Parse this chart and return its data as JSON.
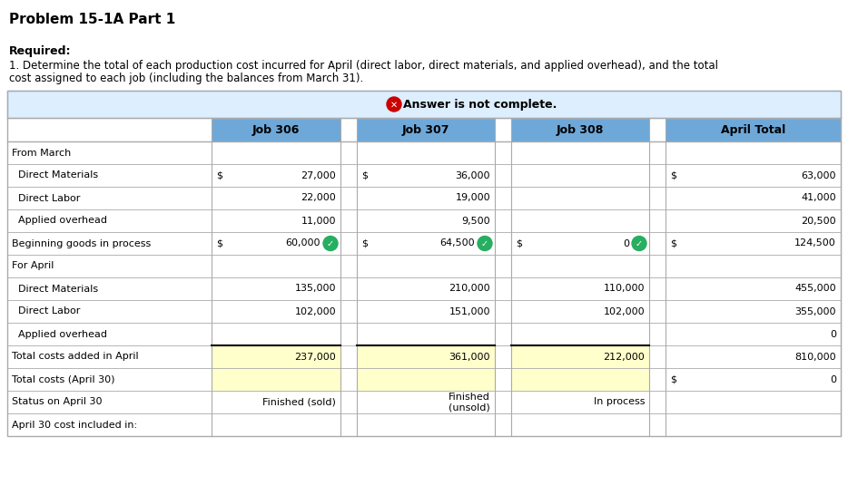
{
  "title": "Problem 15-1A Part 1",
  "required_text": "Required:",
  "desc_line1": "1. Determine the total of each production cost incurred for April (direct labor, direct materials, and applied overhead), and the total",
  "desc_line2": "cost assigned to each job (including the balances from March 31).",
  "answer_banner": "Answer is not complete.",
  "header_bg": "#6ea8d8",
  "answer_bg": "#ddeeff",
  "yellow_bg": "#ffffcc",
  "bg_color": "#ffffff",
  "text_color": "#000000",
  "border_color": "#aaaaaa",
  "sep_color": "#cccccc",
  "rows": [
    {
      "label": "From March",
      "j306d": "",
      "j306v": "",
      "j307d": "",
      "j307v": "",
      "j308d": "",
      "j308v": "",
      "atd": "",
      "atv": "",
      "yellow": false,
      "c6": false,
      "c7": false,
      "c8": false
    },
    {
      "label": "  Direct Materials",
      "j306d": "$",
      "j306v": "27,000",
      "j307d": "$",
      "j307v": "36,000",
      "j308d": "",
      "j308v": "",
      "atd": "$",
      "atv": "63,000",
      "yellow": false,
      "c6": false,
      "c7": false,
      "c8": false
    },
    {
      "label": "  Direct Labor",
      "j306d": "",
      "j306v": "22,000",
      "j307d": "",
      "j307v": "19,000",
      "j308d": "",
      "j308v": "",
      "atd": "",
      "atv": "41,000",
      "yellow": false,
      "c6": false,
      "c7": false,
      "c8": false
    },
    {
      "label": "  Applied overhead",
      "j306d": "",
      "j306v": "11,000",
      "j307d": "",
      "j307v": "9,500",
      "j308d": "",
      "j308v": "",
      "atd": "",
      "atv": "20,500",
      "yellow": false,
      "c6": false,
      "c7": false,
      "c8": false
    },
    {
      "label": "Beginning goods in process",
      "j306d": "$",
      "j306v": "60,000",
      "j307d": "$",
      "j307v": "64,500",
      "j308d": "$",
      "j308v": "0",
      "atd": "$",
      "atv": "124,500",
      "yellow": false,
      "c6": true,
      "c7": true,
      "c8": true
    },
    {
      "label": "For April",
      "j306d": "",
      "j306v": "",
      "j307d": "",
      "j307v": "",
      "j308d": "",
      "j308v": "",
      "atd": "",
      "atv": "",
      "yellow": false,
      "c6": false,
      "c7": false,
      "c8": false
    },
    {
      "label": "  Direct Materials",
      "j306d": "",
      "j306v": "135,000",
      "j307d": "",
      "j307v": "210,000",
      "j308d": "",
      "j308v": "110,000",
      "atd": "",
      "atv": "455,000",
      "yellow": false,
      "c6": false,
      "c7": false,
      "c8": false
    },
    {
      "label": "  Direct Labor",
      "j306d": "",
      "j306v": "102,000",
      "j307d": "",
      "j307v": "151,000",
      "j308d": "",
      "j308v": "102,000",
      "atd": "",
      "atv": "355,000",
      "yellow": false,
      "c6": false,
      "c7": false,
      "c8": false
    },
    {
      "label": "  Applied overhead",
      "j306d": "",
      "j306v": "",
      "j307d": "",
      "j307v": "",
      "j308d": "",
      "j308v": "",
      "atd": "",
      "atv": "0",
      "yellow": false,
      "c6": false,
      "c7": false,
      "c8": false
    },
    {
      "label": "Total costs added in April",
      "j306d": "",
      "j306v": "237,000",
      "j307d": "",
      "j307v": "361,000",
      "j308d": "",
      "j308v": "212,000",
      "atd": "",
      "atv": "810,000",
      "yellow": true,
      "c6": false,
      "c7": false,
      "c8": false
    },
    {
      "label": "Total costs (April 30)",
      "j306d": "",
      "j306v": "",
      "j307d": "",
      "j307v": "",
      "j308d": "",
      "j308v": "",
      "atd": "$",
      "atv": "0",
      "yellow": true,
      "c6": false,
      "c7": false,
      "c8": false
    },
    {
      "label": "Status on April 30",
      "j306d": "",
      "j306v": "Finished (sold)",
      "j307d": "",
      "j307v": "Finished\n(unsold)",
      "j308d": "",
      "j308v": "In process",
      "atd": "",
      "atv": "",
      "yellow": false,
      "c6": false,
      "c7": false,
      "c8": false
    },
    {
      "label": "April 30 cost included in:",
      "j306d": "",
      "j306v": "",
      "j307d": "",
      "j307v": "",
      "j308d": "",
      "j308v": "",
      "atd": "",
      "atv": "",
      "yellow": false,
      "c6": false,
      "c7": false,
      "c8": false
    }
  ]
}
